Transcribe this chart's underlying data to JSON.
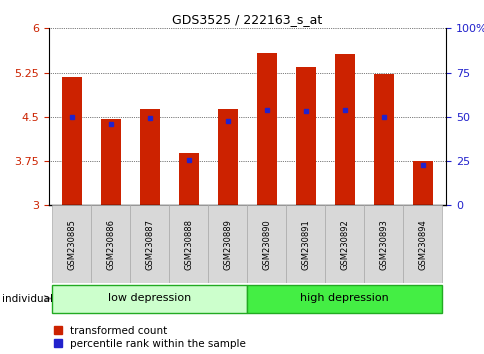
{
  "title": "GDS3525 / 222163_s_at",
  "samples": [
    "GSM230885",
    "GSM230886",
    "GSM230887",
    "GSM230888",
    "GSM230889",
    "GSM230890",
    "GSM230891",
    "GSM230892",
    "GSM230893",
    "GSM230894"
  ],
  "bar_tops": [
    5.18,
    4.47,
    4.63,
    3.88,
    4.63,
    5.58,
    5.35,
    5.56,
    5.22,
    3.75
  ],
  "bar_base": 3.0,
  "blue_values": [
    4.5,
    4.38,
    4.48,
    3.77,
    4.43,
    4.62,
    4.6,
    4.62,
    4.5,
    3.68
  ],
  "bar_color": "#cc2200",
  "blue_color": "#2222cc",
  "ylim_left": [
    3.0,
    6.0
  ],
  "yticks_left": [
    3.0,
    3.75,
    4.5,
    5.25,
    6.0
  ],
  "yticklabels_left": [
    "3",
    "3.75",
    "4.5",
    "5.25",
    "6"
  ],
  "ylim_right": [
    0,
    100
  ],
  "yticks_right": [
    0,
    25,
    50,
    75,
    100
  ],
  "yticklabels_right": [
    "0",
    "25",
    "50",
    "75",
    "100%"
  ],
  "group_labels": [
    "low depression",
    "high depression"
  ],
  "group_ranges": [
    [
      0,
      4
    ],
    [
      5,
      9
    ]
  ],
  "group_color_low": "#ccffcc",
  "group_color_high": "#44ee44",
  "group_border_color": "#22aa22",
  "bar_width": 0.5,
  "background_color": "#ffffff",
  "legend_red": "transformed count",
  "legend_blue": "percentile rank within the sample",
  "individual_label": "individual",
  "ycolor_left": "#cc2200",
  "ycolor_right": "#2222cc",
  "gray_box_color": "#d8d8d8",
  "gray_box_edge": "#aaaaaa"
}
